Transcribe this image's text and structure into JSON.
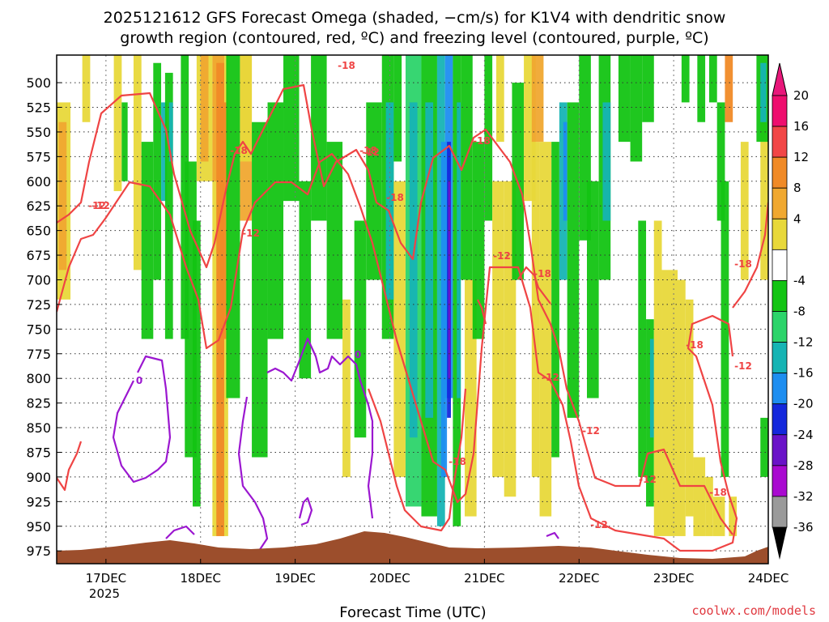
{
  "chart_data": {
    "type": "heatmap",
    "title_line1": "2025121612 GFS Forecast Omega (shaded, −cm/s) for K1V4 with dendritic snow",
    "title_line2": "growth region (contoured, red, ºC) and freezing level (contoured, purple, ºC)",
    "xlabel": "Forecast Time (UTC)",
    "credit": "coolwx.com/models",
    "x_ticks": [
      "17DEC",
      "18DEC",
      "19DEC",
      "20DEC",
      "21DEC",
      "22DEC",
      "23DEC",
      "24DEC"
    ],
    "x_tick_sublabel": "2025",
    "xlim_hours": [
      -12.5,
      168
    ],
    "y_ticks": [
      500,
      525,
      550,
      575,
      600,
      625,
      650,
      675,
      700,
      725,
      750,
      775,
      800,
      825,
      850,
      875,
      900,
      925,
      950,
      975
    ],
    "ylim_hpa": [
      472,
      988
    ],
    "colorbar": {
      "labels": [
        "20",
        "16",
        "12",
        "8",
        "4",
        "-4",
        "-8",
        "-12",
        "-16",
        "-20",
        "-24",
        "-28",
        "-32",
        "-36"
      ],
      "levels": [
        20,
        16,
        12,
        8,
        4,
        -4,
        -8,
        -12,
        -16,
        -20,
        -24,
        -28,
        -32,
        -36
      ],
      "colors": [
        "#ee0e6e",
        "#f14646",
        "#f08a27",
        "#f0a830",
        "#e8d83a",
        "#ffffff",
        "#13c413",
        "#2cd46a",
        "#16b4b4",
        "#1e8ef0",
        "#1428dc",
        "#6a13c8",
        "#a90ad0",
        "#9a9a9a"
      ],
      "top_arrow_color": "#e8177a",
      "bottom_arrow_color": "#000000"
    },
    "contour_labels": {
      "dgz_red": [
        "-12",
        "-18",
        "-12",
        "-18",
        "-12",
        "-18",
        "-18",
        "-12",
        "-18",
        "-12",
        "-12",
        "-18",
        "-12",
        "-18",
        "-12",
        "-18",
        "-12",
        "-18",
        "-12",
        "-18"
      ],
      "freezing_purple": [
        "0",
        "0"
      ]
    },
    "terrain_color": "#9c4e2c",
    "dgz_color": "#ef4444",
    "freezing_color": "#9b17d0",
    "grid": "dotted"
  }
}
